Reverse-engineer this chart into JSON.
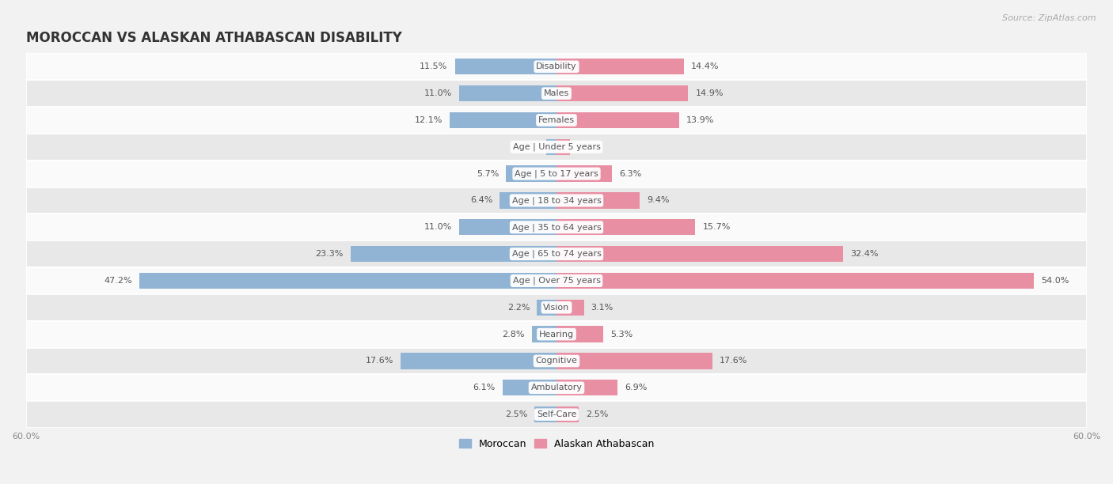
{
  "title": "MOROCCAN VS ALASKAN ATHABASCAN DISABILITY",
  "source": "Source: ZipAtlas.com",
  "categories": [
    "Disability",
    "Males",
    "Females",
    "Age | Under 5 years",
    "Age | 5 to 17 years",
    "Age | 18 to 34 years",
    "Age | 35 to 64 years",
    "Age | 65 to 74 years",
    "Age | Over 75 years",
    "Vision",
    "Hearing",
    "Cognitive",
    "Ambulatory",
    "Self-Care"
  ],
  "moroccan": [
    11.5,
    11.0,
    12.1,
    1.2,
    5.7,
    6.4,
    11.0,
    23.3,
    47.2,
    2.2,
    2.8,
    17.6,
    6.1,
    2.5
  ],
  "alaskan": [
    14.4,
    14.9,
    13.9,
    1.5,
    6.3,
    9.4,
    15.7,
    32.4,
    54.0,
    3.1,
    5.3,
    17.6,
    6.9,
    2.5
  ],
  "moroccan_color": "#92b4d4",
  "alaskan_color": "#e88fa4",
  "axis_limit": 60.0,
  "bar_height": 0.6,
  "background_color": "#f2f2f2",
  "row_bg_light": "#fafafa",
  "row_bg_dark": "#e8e8e8",
  "legend_moroccan": "Moroccan",
  "legend_alaskan": "Alaskan Athabascan",
  "title_fontsize": 12,
  "label_fontsize": 8,
  "category_fontsize": 8,
  "source_fontsize": 8
}
